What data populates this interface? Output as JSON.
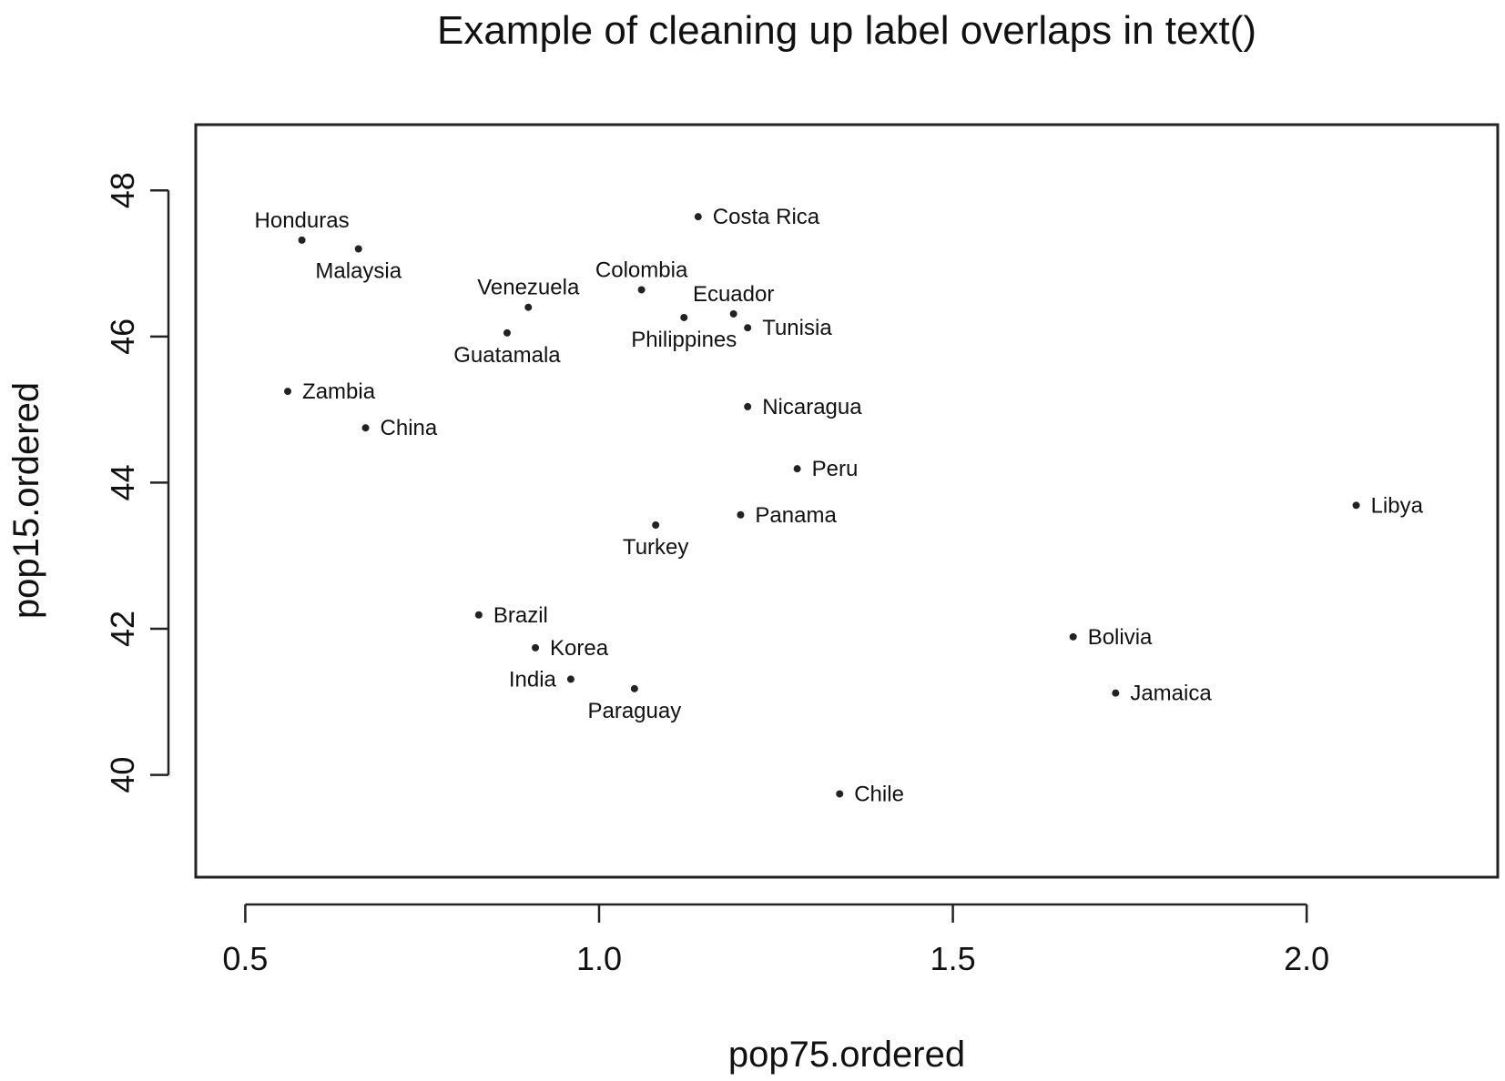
{
  "chart_data": {
    "type": "scatter",
    "title": "Example of cleaning up label overlaps in text()",
    "xlabel": "pop75.ordered",
    "ylabel": "pop15.ordered",
    "xlim": [
      0.43,
      2.27
    ],
    "ylim": [
      38.6,
      48.9
    ],
    "x_ticks": [
      0.5,
      1.0,
      1.5,
      2.0
    ],
    "x_tick_labels": [
      "0.5",
      "1.0",
      "1.5",
      "2.0"
    ],
    "y_ticks": [
      40,
      42,
      44,
      46,
      48
    ],
    "y_tick_labels": [
      "40",
      "42",
      "44",
      "46",
      "48"
    ],
    "grid": false,
    "legend": "none",
    "point_color": "#222222",
    "points": [
      {
        "label": "Honduras",
        "x": 0.58,
        "y": 47.32,
        "label_pos": "above"
      },
      {
        "label": "Malaysia",
        "x": 0.66,
        "y": 47.2,
        "label_pos": "below"
      },
      {
        "label": "Costa Rica",
        "x": 1.14,
        "y": 47.64,
        "label_pos": "right"
      },
      {
        "label": "Colombia",
        "x": 1.06,
        "y": 46.64,
        "label_pos": "above"
      },
      {
        "label": "Venezuela",
        "x": 0.9,
        "y": 46.4,
        "label_pos": "above"
      },
      {
        "label": "Ecuador",
        "x": 1.19,
        "y": 46.31,
        "label_pos": "above"
      },
      {
        "label": "Philippines",
        "x": 1.12,
        "y": 46.26,
        "label_pos": "below"
      },
      {
        "label": "Tunisia",
        "x": 1.21,
        "y": 46.12,
        "label_pos": "right"
      },
      {
        "label": "Guatamala",
        "x": 0.87,
        "y": 46.05,
        "label_pos": "below"
      },
      {
        "label": "Zambia",
        "x": 0.56,
        "y": 45.25,
        "label_pos": "right"
      },
      {
        "label": "China",
        "x": 0.67,
        "y": 44.75,
        "label_pos": "right"
      },
      {
        "label": "Nicaragua",
        "x": 1.21,
        "y": 45.04,
        "label_pos": "right"
      },
      {
        "label": "Peru",
        "x": 1.28,
        "y": 44.19,
        "label_pos": "right"
      },
      {
        "label": "Libya",
        "x": 2.07,
        "y": 43.69,
        "label_pos": "right"
      },
      {
        "label": "Panama",
        "x": 1.2,
        "y": 43.56,
        "label_pos": "right"
      },
      {
        "label": "Turkey",
        "x": 1.08,
        "y": 43.42,
        "label_pos": "below"
      },
      {
        "label": "Brazil",
        "x": 0.83,
        "y": 42.19,
        "label_pos": "right"
      },
      {
        "label": "Bolivia",
        "x": 1.67,
        "y": 41.89,
        "label_pos": "right"
      },
      {
        "label": "Korea",
        "x": 0.91,
        "y": 41.74,
        "label_pos": "right"
      },
      {
        "label": "India",
        "x": 0.96,
        "y": 41.31,
        "label_pos": "left"
      },
      {
        "label": "Paraguay",
        "x": 1.05,
        "y": 41.18,
        "label_pos": "below"
      },
      {
        "label": "Jamaica",
        "x": 1.73,
        "y": 41.12,
        "label_pos": "right"
      },
      {
        "label": "Chile",
        "x": 1.34,
        "y": 39.74,
        "label_pos": "right"
      }
    ]
  }
}
